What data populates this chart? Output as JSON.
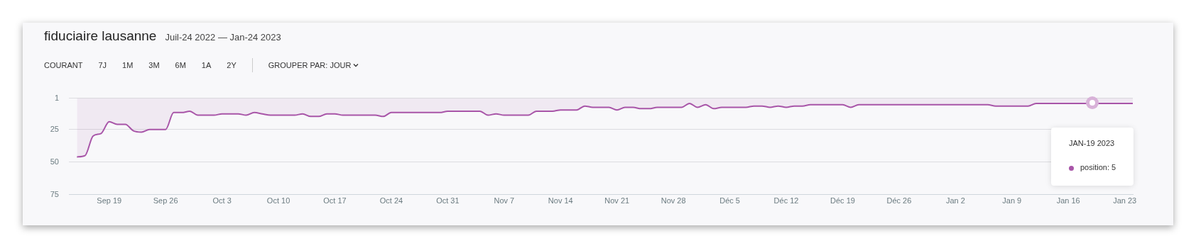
{
  "chart_data": {
    "type": "area",
    "title": "fiduciaire lausanne",
    "subtitle": "Juil-24 2022 — Jan-24 2023",
    "annotations": [
      "COURANT",
      "7J",
      "1M",
      "3M",
      "6M",
      "1A",
      "2Y",
      "GROUPER PAR: JOUR",
      "JAN-19 2023",
      "position: 5"
    ],
    "x": [
      "2022-09-15",
      "2022-09-16",
      "2022-09-17",
      "2022-09-18",
      "2022-09-19",
      "2022-09-20",
      "2022-09-21",
      "2022-09-22",
      "2022-09-23",
      "2022-09-24",
      "2022-09-25",
      "2022-09-26",
      "2022-09-27",
      "2022-09-28",
      "2022-09-29",
      "2022-09-30",
      "2022-10-01",
      "2022-10-02",
      "2022-10-03",
      "2022-10-04",
      "2022-10-05",
      "2022-10-06",
      "2022-10-07",
      "2022-10-08",
      "2022-10-09",
      "2022-10-10",
      "2022-10-11",
      "2022-10-12",
      "2022-10-13",
      "2022-10-14",
      "2022-10-15",
      "2022-10-16",
      "2022-10-17",
      "2022-10-18",
      "2022-10-19",
      "2022-10-20",
      "2022-10-21",
      "2022-10-22",
      "2022-10-23",
      "2022-10-24",
      "2022-10-25",
      "2022-10-26",
      "2022-10-27",
      "2022-10-28",
      "2022-10-29",
      "2022-10-30",
      "2022-10-31",
      "2022-11-01",
      "2022-11-02",
      "2022-11-03",
      "2022-11-04",
      "2022-11-05",
      "2022-11-06",
      "2022-11-07",
      "2022-11-08",
      "2022-11-09",
      "2022-11-10",
      "2022-11-11",
      "2022-11-12",
      "2022-11-13",
      "2022-11-14",
      "2022-11-15",
      "2022-11-16",
      "2022-11-17",
      "2022-11-18",
      "2022-11-19",
      "2022-11-20",
      "2022-11-21",
      "2022-11-22",
      "2022-11-23",
      "2022-11-24",
      "2022-11-25",
      "2022-11-26",
      "2022-11-27",
      "2022-11-28",
      "2022-11-29",
      "2022-11-30",
      "2022-12-01",
      "2022-12-02",
      "2022-12-03",
      "2022-12-04",
      "2022-12-05",
      "2022-12-06",
      "2022-12-07",
      "2022-12-08",
      "2022-12-09",
      "2022-12-10",
      "2022-12-11",
      "2022-12-12",
      "2022-12-13",
      "2022-12-14",
      "2022-12-15",
      "2022-12-16",
      "2022-12-17",
      "2022-12-18",
      "2022-12-19",
      "2022-12-20",
      "2022-12-21",
      "2022-12-22",
      "2022-12-23",
      "2022-12-24",
      "2022-12-25",
      "2022-12-26",
      "2022-12-27",
      "2022-12-28",
      "2022-12-29",
      "2022-12-30",
      "2022-12-31",
      "2023-01-01",
      "2023-01-02",
      "2023-01-03",
      "2023-01-04",
      "2023-01-05",
      "2023-01-06",
      "2023-01-07",
      "2023-01-08",
      "2023-01-09",
      "2023-01-10",
      "2023-01-11",
      "2023-01-12",
      "2023-01-13",
      "2023-01-14",
      "2023-01-15",
      "2023-01-16",
      "2023-01-17",
      "2023-01-18",
      "2023-01-19",
      "2023-01-20",
      "2023-01-21",
      "2023-01-22",
      "2023-01-23",
      "2023-01-24"
    ],
    "series": [
      {
        "color": "#a855a8",
        "values": [
          46,
          45,
          30,
          28,
          19,
          21,
          21,
          26,
          27,
          25,
          25,
          25,
          12,
          12,
          11,
          14,
          14,
          14,
          13,
          13,
          13,
          14,
          12,
          13,
          14,
          14,
          14,
          14,
          13,
          15,
          15,
          13,
          13,
          14,
          14,
          14,
          14,
          14,
          15,
          12,
          12,
          12,
          12,
          12,
          12,
          12,
          11,
          11,
          11,
          11,
          11,
          14,
          13,
          14,
          14,
          14,
          14,
          11,
          11,
          11,
          10,
          10,
          10,
          7,
          8,
          8,
          8,
          10,
          8,
          8,
          9,
          9,
          8,
          8,
          8,
          8,
          5,
          8,
          6,
          9,
          8,
          8,
          8,
          8,
          7,
          7,
          8,
          7,
          8,
          7,
          7,
          6,
          6,
          6,
          6,
          6,
          8,
          6,
          6,
          6,
          6,
          6,
          6,
          6,
          6,
          6,
          6,
          6,
          6,
          6,
          6,
          6,
          6,
          6,
          7,
          7,
          7,
          7,
          7,
          5,
          5,
          5,
          5,
          5,
          5,
          5,
          5,
          5,
          5,
          5,
          5,
          5
        ]
      }
    ],
    "xlim": [
      "2022-09-14",
      "2023-01-24"
    ],
    "xticks": [
      {
        "value": "2022-09-19",
        "label": "Sep 19"
      },
      {
        "value": "2022-09-26",
        "label": "Sep 26"
      },
      {
        "value": "2022-10-03",
        "label": "Oct 3"
      },
      {
        "value": "2022-10-10",
        "label": "Oct 10"
      },
      {
        "value": "2022-10-17",
        "label": "Oct 17"
      },
      {
        "value": "2022-10-24",
        "label": "Oct 24"
      },
      {
        "value": "2022-10-31",
        "label": "Oct 31"
      },
      {
        "value": "2022-11-07",
        "label": "Nov 7"
      },
      {
        "value": "2022-11-14",
        "label": "Nov 14"
      },
      {
        "value": "2022-11-21",
        "label": "Nov 21"
      },
      {
        "value": "2022-11-28",
        "label": "Nov 28"
      },
      {
        "value": "2022-12-05",
        "label": "Déc 5"
      },
      {
        "value": "2022-12-12",
        "label": "Déc 12"
      },
      {
        "value": "2022-12-19",
        "label": "Déc 19"
      },
      {
        "value": "2022-12-26",
        "label": "Déc 26"
      },
      {
        "value": "2023-01-02",
        "label": "Jan 2"
      },
      {
        "value": "2023-01-09",
        "label": "Jan 9"
      },
      {
        "value": "2023-01-16",
        "label": "Jan 16"
      },
      {
        "value": "2023-01-23",
        "label": "Jan 23"
      }
    ],
    "ylim": [
      75,
      1
    ],
    "yticks": [
      1,
      25,
      50,
      75
    ],
    "grid": "y",
    "legend": false,
    "marker": "none",
    "line_style": "solid"
  }
}
